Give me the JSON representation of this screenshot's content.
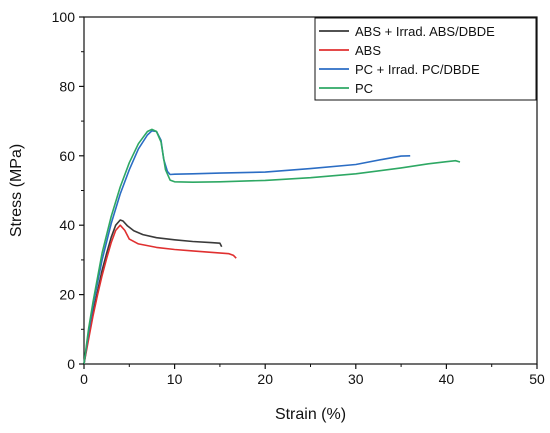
{
  "chart_data": {
    "type": "line",
    "title": "",
    "xlabel": "Strain (%)",
    "ylabel": "Stress (MPa)",
    "xlim": [
      0,
      50
    ],
    "ylim": [
      0,
      100
    ],
    "xticks": [
      0,
      10,
      20,
      30,
      40,
      50
    ],
    "yticks": [
      0,
      20,
      40,
      60,
      80,
      100
    ],
    "grid": false,
    "legend_position": "top-right",
    "series": [
      {
        "name": "ABS + Irrad. ABS/DBDE",
        "color": "#3a3a3a",
        "x": [
          0,
          0.5,
          1,
          1.5,
          2,
          2.5,
          3,
          3.5,
          4,
          4.3,
          4.8,
          5.5,
          6.5,
          8,
          10,
          12,
          14,
          15,
          15.2
        ],
        "y": [
          0,
          8,
          15,
          21,
          27,
          32,
          36.5,
          40,
          41.5,
          41.2,
          39.8,
          38.4,
          37.3,
          36.4,
          35.8,
          35.3,
          35,
          34.8,
          33.8
        ]
      },
      {
        "name": "ABS",
        "color": "#e03030",
        "x": [
          0,
          0.5,
          1,
          1.5,
          2,
          2.5,
          3,
          3.5,
          4,
          4.5,
          5,
          6,
          8,
          10,
          12,
          14,
          16,
          16.5,
          16.8
        ],
        "y": [
          0,
          7,
          14,
          20,
          25.5,
          30.5,
          35,
          38.5,
          40,
          38.5,
          36,
          34.6,
          33.6,
          33,
          32.6,
          32.2,
          31.8,
          31.3,
          30.5
        ]
      },
      {
        "name": "PC + Irrad. PC/DBDE",
        "color": "#2b6dc4",
        "x": [
          0,
          0.5,
          1,
          2,
          3,
          4,
          5,
          6,
          7,
          7.5,
          8,
          8.5,
          8.8,
          9.2,
          9.5,
          10,
          12,
          15,
          20,
          25,
          30,
          33,
          35,
          36
        ],
        "y": [
          0,
          9,
          17,
          30,
          40.5,
          49,
          56,
          62,
          66,
          67.2,
          67,
          64.5,
          59,
          55.5,
          54.6,
          54.7,
          54.8,
          55,
          55.3,
          56.3,
          57.5,
          59,
          59.9,
          60
        ]
      },
      {
        "name": "PC",
        "color": "#2ea864",
        "x": [
          0,
          0.5,
          1,
          2,
          3,
          4,
          5,
          6,
          7,
          7.5,
          8,
          8.5,
          9,
          9.5,
          10,
          12,
          15,
          20,
          25,
          30,
          35,
          38,
          40,
          41,
          41.5
        ],
        "y": [
          0,
          10,
          18,
          32,
          42.5,
          51,
          58,
          63.5,
          67,
          67.6,
          67,
          64,
          56,
          53,
          52.5,
          52.4,
          52.5,
          52.9,
          53.7,
          54.8,
          56.5,
          57.7,
          58.3,
          58.6,
          58.2
        ]
      }
    ]
  }
}
